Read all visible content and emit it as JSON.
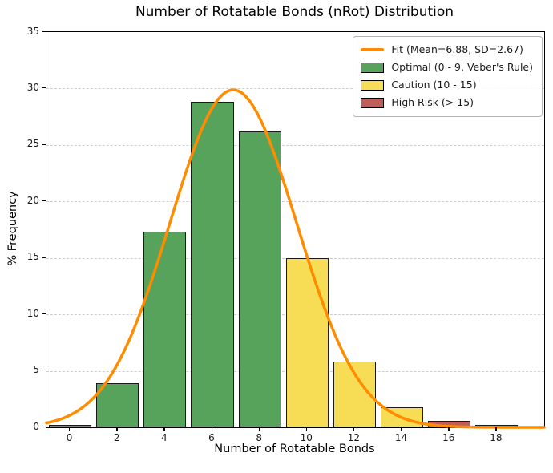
{
  "chart_data": {
    "type": "bar",
    "subtype": "histogram",
    "title": "Number of Rotatable Bonds (nRot) Distribution",
    "xlabel": "Number of Rotatable Bonds",
    "ylabel": "% Frequency",
    "xlim": [
      -1,
      20
    ],
    "ylim": [
      0,
      35
    ],
    "xticks": [
      0,
      2,
      4,
      6,
      8,
      10,
      12,
      14,
      16,
      18
    ],
    "yticks": [
      0,
      5,
      10,
      15,
      20,
      25,
      30,
      35
    ],
    "grid": {
      "axis": "y",
      "style": "dashed",
      "color": "#cfcfcf"
    },
    "bin_width": 2,
    "bar_width": 1.8,
    "categories": [
      0,
      2,
      4,
      6,
      8,
      10,
      12,
      14,
      16,
      18
    ],
    "values": [
      0.2,
      3.9,
      17.3,
      28.8,
      26.2,
      15.0,
      5.8,
      1.8,
      0.6,
      0.2
    ],
    "bars": [
      {
        "x": 0,
        "value": 0.2,
        "category": "optimal"
      },
      {
        "x": 2,
        "value": 3.9,
        "category": "optimal"
      },
      {
        "x": 4,
        "value": 17.3,
        "category": "optimal"
      },
      {
        "x": 6,
        "value": 28.8,
        "category": "optimal"
      },
      {
        "x": 8,
        "value": 26.2,
        "category": "optimal"
      },
      {
        "x": 10,
        "value": 15.0,
        "category": "caution"
      },
      {
        "x": 12,
        "value": 5.8,
        "category": "caution"
      },
      {
        "x": 14,
        "value": 1.8,
        "category": "caution"
      },
      {
        "x": 16,
        "value": 0.6,
        "category": "high_risk"
      },
      {
        "x": 18,
        "value": 0.2,
        "category": "high_risk"
      }
    ],
    "category_colors": {
      "optimal": "#57A35C",
      "caution": "#F7DC55",
      "high_risk": "#BF5F5B"
    },
    "bar_edge_color": "#1a1a1a",
    "fit_curve": {
      "shape": "gaussian",
      "mean": 6.88,
      "sd": 2.67,
      "peak": 29.88,
      "color": "#FF8C00",
      "line_width": 3.5
    },
    "legend": {
      "position": "upper right",
      "items": [
        {
          "label": "Fit (Mean=6.88, SD=2.67)",
          "swatch": "line",
          "color": "#FF8C00"
        },
        {
          "label": "Optimal (0 - 9, Veber's Rule)",
          "swatch": "patch",
          "color": "#57A35C"
        },
        {
          "label": "Caution (10 - 15)",
          "swatch": "patch",
          "color": "#F7DC55"
        },
        {
          "label": "High Risk (> 15)",
          "swatch": "patch",
          "color": "#BF5F5B"
        }
      ]
    }
  }
}
